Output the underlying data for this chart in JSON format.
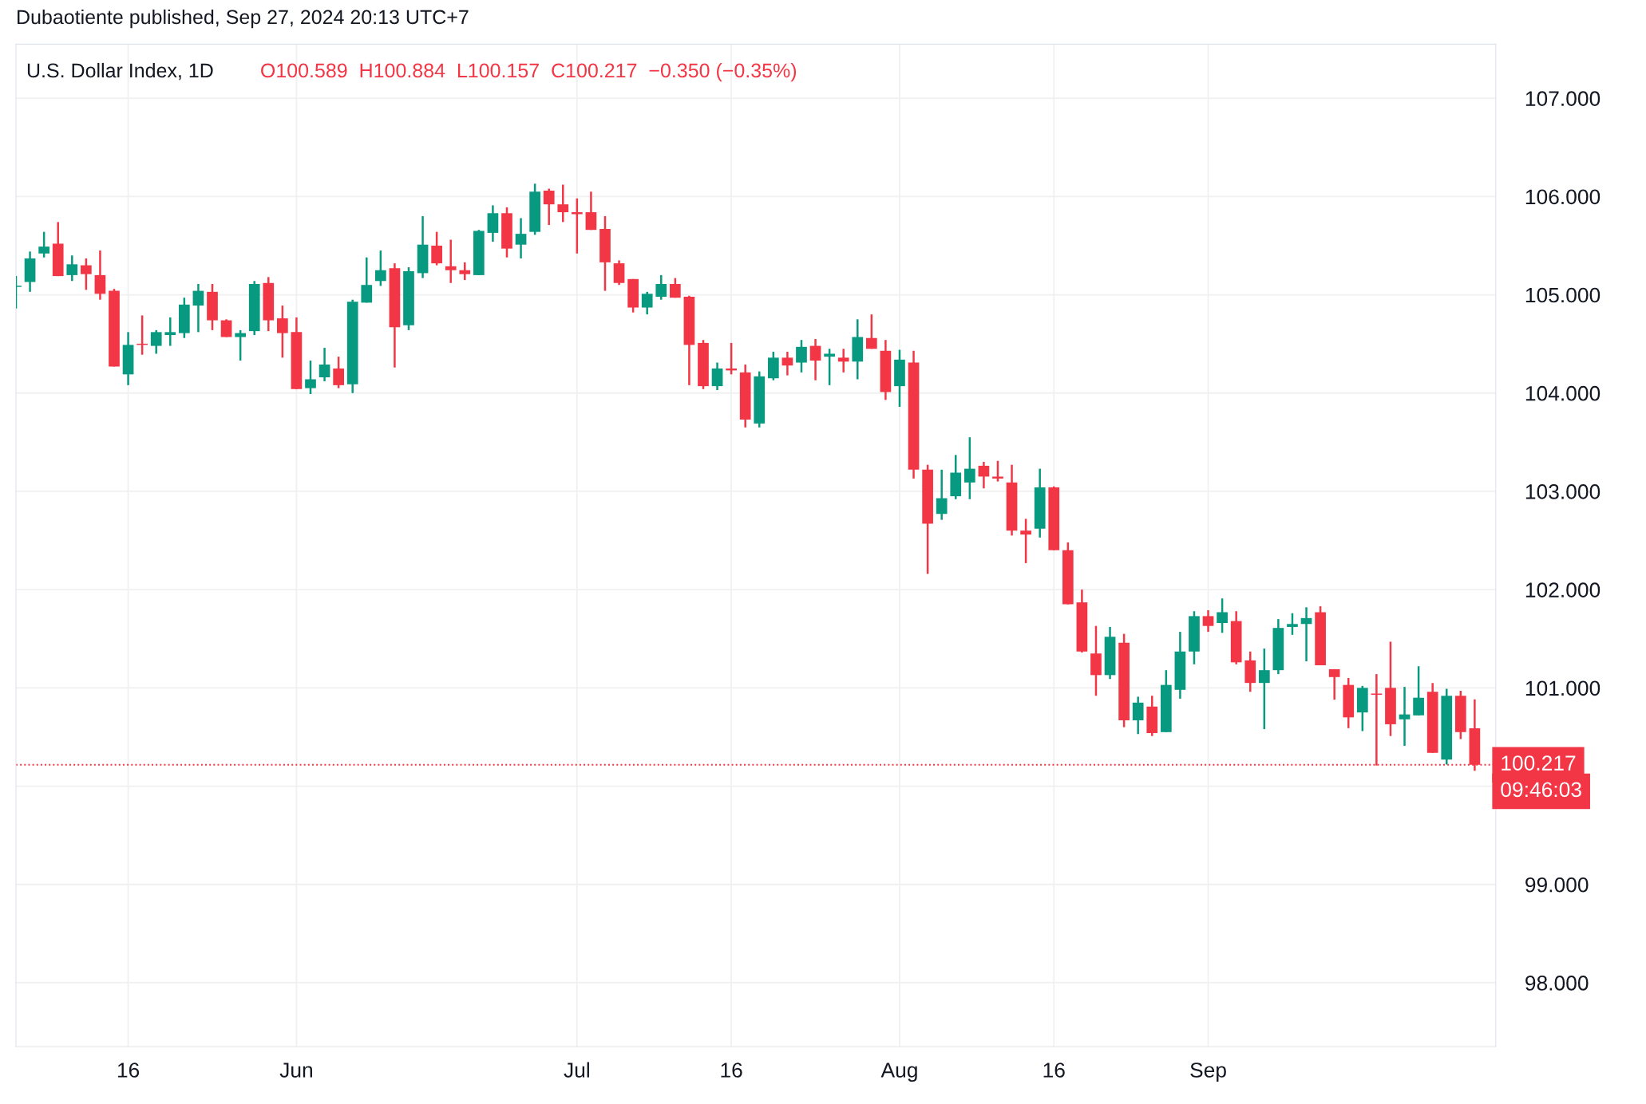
{
  "chart_data": {
    "type": "candlestick",
    "title": "U.S. Dollar Index, 1D",
    "annotations": [
      "Dubaotiente published, Sep 27, 2024 20:13 UTC+7",
      "O100.589  H100.884  L100.157  C100.217  −0.350 (−0.35%)",
      "09:46:03"
    ],
    "categories": [
      null,
      null,
      null,
      null,
      null,
      null,
      null,
      null,
      "16",
      null,
      null,
      null,
      null,
      null,
      null,
      null,
      null,
      null,
      null,
      null,
      "Jun",
      null,
      null,
      null,
      null,
      null,
      null,
      null,
      null,
      null,
      null,
      null,
      null,
      null,
      null,
      null,
      null,
      null,
      null,
      null,
      "Jul",
      null,
      null,
      null,
      null,
      null,
      null,
      null,
      null,
      null,
      null,
      "16",
      null,
      null,
      null,
      null,
      null,
      null,
      null,
      null,
      null,
      null,
      null,
      "Aug",
      null,
      null,
      null,
      null,
      null,
      null,
      null,
      null,
      null,
      null,
      "16",
      null,
      null,
      null,
      null,
      null,
      null,
      null,
      null,
      null,
      null,
      "Sep",
      null,
      null,
      null,
      null,
      null,
      null,
      null,
      null,
      null,
      null,
      null,
      null,
      null,
      null,
      null,
      null,
      null,
      null,
      null
    ],
    "ohlc": [
      [
        105.08,
        105.19,
        104.86,
        105.09
      ],
      [
        105.13,
        105.44,
        105.03,
        105.37
      ],
      [
        105.42,
        105.64,
        105.38,
        105.49
      ],
      [
        105.52,
        105.74,
        105.19,
        105.19
      ],
      [
        105.2,
        105.4,
        105.14,
        105.31
      ],
      [
        105.3,
        105.37,
        105.05,
        105.21
      ],
      [
        105.2,
        105.45,
        104.95,
        105.01
      ],
      [
        105.04,
        105.06,
        104.27,
        104.27
      ],
      [
        104.19,
        104.62,
        104.08,
        104.49
      ],
      [
        104.5,
        104.79,
        104.39,
        104.49
      ],
      [
        104.48,
        104.64,
        104.4,
        104.62
      ],
      [
        104.59,
        104.77,
        104.48,
        104.62
      ],
      [
        104.61,
        104.97,
        104.56,
        104.9
      ],
      [
        104.89,
        105.11,
        104.62,
        105.04
      ],
      [
        105.03,
        105.11,
        104.64,
        104.74
      ],
      [
        104.74,
        104.75,
        104.57,
        104.57
      ],
      [
        104.57,
        104.64,
        104.33,
        104.61
      ],
      [
        104.63,
        105.14,
        104.59,
        105.11
      ],
      [
        105.12,
        105.18,
        104.63,
        104.74
      ],
      [
        104.76,
        104.89,
        104.36,
        104.61
      ],
      [
        104.62,
        104.77,
        104.04,
        104.04
      ],
      [
        104.05,
        104.33,
        103.99,
        104.14
      ],
      [
        104.16,
        104.46,
        104.12,
        104.29
      ],
      [
        104.25,
        104.37,
        104.05,
        104.08
      ],
      [
        104.09,
        104.95,
        104.0,
        104.93
      ],
      [
        104.92,
        105.38,
        104.92,
        105.1
      ],
      [
        105.14,
        105.45,
        105.09,
        105.25
      ],
      [
        105.27,
        105.32,
        104.26,
        104.67
      ],
      [
        104.69,
        105.28,
        104.64,
        105.24
      ],
      [
        105.22,
        105.8,
        105.17,
        105.51
      ],
      [
        105.5,
        105.64,
        105.3,
        105.32
      ],
      [
        105.29,
        105.56,
        105.12,
        105.25
      ],
      [
        105.25,
        105.33,
        105.15,
        105.21
      ],
      [
        105.2,
        105.66,
        105.2,
        105.65
      ],
      [
        105.63,
        105.91,
        105.54,
        105.83
      ],
      [
        105.83,
        105.89,
        105.38,
        105.47
      ],
      [
        105.51,
        105.78,
        105.37,
        105.62
      ],
      [
        105.64,
        106.13,
        105.61,
        106.05
      ],
      [
        106.06,
        106.08,
        105.71,
        105.92
      ],
      [
        105.92,
        106.12,
        105.74,
        105.84
      ],
      [
        105.84,
        105.98,
        105.42,
        105.82
      ],
      [
        105.84,
        106.05,
        105.66,
        105.66
      ],
      [
        105.67,
        105.8,
        105.04,
        105.33
      ],
      [
        105.32,
        105.35,
        105.1,
        105.12
      ],
      [
        105.16,
        105.16,
        104.82,
        104.87
      ],
      [
        104.87,
        105.03,
        104.8,
        105.01
      ],
      [
        104.98,
        105.2,
        104.95,
        105.11
      ],
      [
        105.11,
        105.17,
        104.97,
        104.97
      ],
      [
        104.98,
        104.99,
        104.08,
        104.49
      ],
      [
        104.51,
        104.54,
        104.04,
        104.07
      ],
      [
        104.07,
        104.31,
        104.03,
        104.25
      ],
      [
        104.25,
        104.51,
        104.19,
        104.23
      ],
      [
        104.21,
        104.29,
        103.65,
        103.73
      ],
      [
        103.69,
        104.22,
        103.65,
        104.17
      ],
      [
        104.15,
        104.42,
        104.13,
        104.36
      ],
      [
        104.36,
        104.42,
        104.18,
        104.28
      ],
      [
        104.31,
        104.54,
        104.21,
        104.47
      ],
      [
        104.48,
        104.55,
        104.13,
        104.33
      ],
      [
        104.37,
        104.45,
        104.08,
        104.4
      ],
      [
        104.36,
        104.45,
        104.21,
        104.32
      ],
      [
        104.32,
        104.75,
        104.14,
        104.57
      ],
      [
        104.56,
        104.8,
        104.45,
        104.45
      ],
      [
        104.43,
        104.54,
        103.93,
        104.01
      ],
      [
        104.07,
        104.44,
        103.86,
        104.34
      ],
      [
        104.31,
        104.43,
        103.13,
        103.22
      ],
      [
        103.22,
        103.27,
        102.16,
        102.67
      ],
      [
        102.77,
        103.22,
        102.71,
        102.93
      ],
      [
        102.95,
        103.37,
        102.92,
        103.19
      ],
      [
        103.09,
        103.55,
        102.92,
        103.23
      ],
      [
        103.26,
        103.3,
        103.03,
        103.15
      ],
      [
        103.15,
        103.31,
        103.1,
        103.13
      ],
      [
        103.09,
        103.27,
        102.55,
        102.6
      ],
      [
        102.6,
        102.72,
        102.27,
        102.56
      ],
      [
        102.62,
        103.23,
        102.53,
        103.04
      ],
      [
        103.04,
        103.05,
        102.4,
        102.4
      ],
      [
        102.4,
        102.48,
        101.85,
        101.85
      ],
      [
        101.87,
        102.0,
        101.36,
        101.37
      ],
      [
        101.35,
        101.63,
        100.92,
        101.13
      ],
      [
        101.13,
        101.62,
        101.09,
        101.52
      ],
      [
        101.46,
        101.55,
        100.6,
        100.67
      ],
      [
        100.67,
        100.91,
        100.53,
        100.85
      ],
      [
        100.81,
        100.92,
        100.51,
        100.54
      ],
      [
        100.55,
        101.18,
        100.55,
        101.03
      ],
      [
        100.98,
        101.57,
        100.89,
        101.37
      ],
      [
        101.37,
        101.78,
        101.24,
        101.73
      ],
      [
        101.73,
        101.79,
        101.57,
        101.63
      ],
      [
        101.66,
        101.91,
        101.56,
        101.77
      ],
      [
        101.68,
        101.78,
        101.24,
        101.26
      ],
      [
        101.28,
        101.37,
        100.96,
        101.05
      ],
      [
        101.05,
        101.4,
        100.58,
        101.18
      ],
      [
        101.18,
        101.7,
        101.14,
        101.61
      ],
      [
        101.62,
        101.76,
        101.54,
        101.65
      ],
      [
        101.65,
        101.82,
        101.27,
        101.71
      ],
      [
        101.77,
        101.83,
        101.23,
        101.23
      ],
      [
        101.19,
        101.19,
        100.88,
        101.11
      ],
      [
        101.03,
        101.1,
        100.59,
        100.7
      ],
      [
        100.75,
        101.02,
        100.56,
        101.0
      ],
      [
        100.94,
        101.14,
        100.21,
        100.93
      ],
      [
        101.0,
        101.47,
        100.51,
        100.63
      ],
      [
        100.68,
        101.01,
        100.41,
        100.73
      ],
      [
        100.72,
        101.22,
        100.72,
        100.9
      ],
      [
        100.96,
        101.05,
        100.34,
        100.34
      ],
      [
        100.27,
        100.99,
        100.22,
        100.92
      ],
      [
        100.92,
        100.97,
        100.48,
        100.55
      ],
      [
        100.589,
        100.884,
        100.157,
        100.217
      ]
    ],
    "colors": [
      "#089981",
      "#089981",
      "#089981",
      "#f23645",
      "#089981",
      "#f23645",
      "#f23645",
      "#f23645",
      "#089981",
      "#f23645",
      "#089981",
      "#089981",
      "#089981",
      "#089981",
      "#f23645",
      "#f23645",
      "#089981",
      "#089981",
      "#f23645",
      "#f23645",
      "#f23645",
      "#089981",
      "#089981",
      "#f23645",
      "#089981",
      "#089981",
      "#089981",
      "#f23645",
      "#089981",
      "#089981",
      "#f23645",
      "#f23645",
      "#f23645",
      "#089981",
      "#089981",
      "#f23645",
      "#089981",
      "#089981",
      "#f23645",
      "#f23645",
      "#f23645",
      "#f23645",
      "#f23645",
      "#f23645",
      "#f23645",
      "#089981",
      "#089981",
      "#f23645",
      "#f23645",
      "#f23645",
      "#089981",
      "#f23645",
      "#f23645",
      "#089981",
      "#089981",
      "#f23645",
      "#089981",
      "#f23645",
      "#089981",
      "#f23645",
      "#089981",
      "#f23645",
      "#f23645",
      "#089981",
      "#f23645",
      "#f23645",
      "#089981",
      "#089981",
      "#089981",
      "#f23645",
      "#f23645",
      "#f23645",
      "#f23645",
      "#089981",
      "#f23645",
      "#f23645",
      "#f23645",
      "#f23645",
      "#089981",
      "#f23645",
      "#089981",
      "#f23645",
      "#089981",
      "#089981",
      "#089981",
      "#f23645",
      "#089981",
      "#f23645",
      "#f23645",
      "#089981",
      "#089981",
      "#089981",
      "#089981",
      "#f23645",
      "#f23645",
      "#f23645",
      "#089981",
      "#f23645",
      "#f23645",
      "#089981",
      "#089981",
      "#f23645",
      "#089981",
      "#f23645",
      "#f23645"
    ],
    "ylim": [
      97.35,
      107.55
    ],
    "yticks": [
      {
        "value": 98,
        "label": "98.000"
      },
      {
        "value": 99,
        "label": "99.000"
      },
      {
        "value": 100,
        "label": null
      },
      {
        "value": 101,
        "label": "101.000"
      },
      {
        "value": 102,
        "label": "102.000"
      },
      {
        "value": 103,
        "label": "103.000"
      },
      {
        "value": 104,
        "label": "104.000"
      },
      {
        "value": 105,
        "label": "105.000"
      },
      {
        "value": 106,
        "label": "106.000"
      },
      {
        "value": 107,
        "label": "107.000"
      }
    ],
    "ref_lines": [
      {
        "axis": "y",
        "value": 100.217,
        "label": "100.217",
        "color": "#f23645",
        "line_style": "dotted"
      }
    ],
    "grid": true
  }
}
